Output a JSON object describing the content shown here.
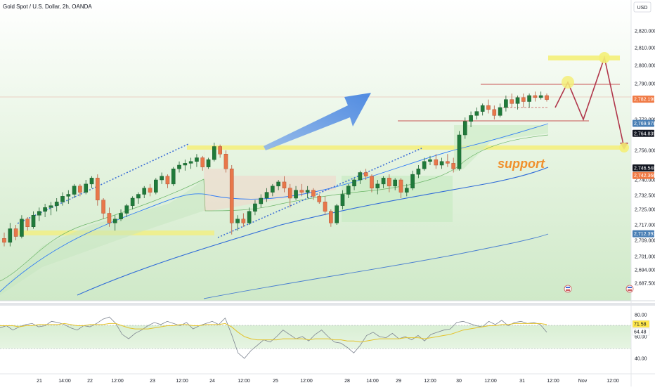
{
  "header": {
    "title": "Gold Spot / U.S. Dollar, 2h, OANDA",
    "currency_button": "USD"
  },
  "annotations": {
    "support_label": "support"
  },
  "chart_data": [
    {
      "type": "candlestick",
      "title": "Gold Spot / U.S. Dollar, 2h, OANDA",
      "currency": "USD",
      "price_axis": {
        "range": [
          2682,
          2828
        ],
        "ticks": [
          2820,
          2810,
          2800,
          2790,
          2772,
          2756,
          2740,
          2732.5,
          2725,
          2717,
          2709,
          2701,
          2694,
          2687.5
        ],
        "tick_labels": [
          "2,820.000",
          "2,810.000",
          "2,800.000",
          "2,790.000",
          "2,772.000",
          "2,756.000",
          "2,740.000",
          "2,732.500",
          "2,725.000",
          "2,717.000",
          "2,709.000",
          "2,701.000",
          "2,694.000",
          "2,687.500"
        ]
      },
      "time_axis": {
        "labels": [
          "21",
          "14:00",
          "22",
          "12:00",
          "23",
          "12:00",
          "24",
          "12:00",
          "25",
          "12:00",
          "28",
          "14:00",
          "29",
          "12:00",
          "30",
          "12:00",
          "31",
          "12:00",
          "Nov",
          "12:00"
        ]
      },
      "price_tags": [
        {
          "label": "2,782.190",
          "value": 2782.2,
          "color": "#f07a45"
        },
        {
          "label": "2,769.978",
          "value": 2770.0,
          "color": "#4a7fb5"
        },
        {
          "label": "2,764.839",
          "value": 2764.8,
          "color": "#131722"
        },
        {
          "label": "2,746.548",
          "value": 2746.5,
          "color": "#131722"
        },
        {
          "label": "2,742.366",
          "value": 2742.4,
          "color": "#f07a45"
        },
        {
          "label": "2,712.393",
          "value": 2712.4,
          "color": "#4a7fb5"
        }
      ],
      "support_level": 2757,
      "projected_target": 2810,
      "candles_ohlc": [
        [
          2710,
          2713,
          2706,
          2708
        ],
        [
          2708,
          2718,
          2706,
          2715
        ],
        [
          2715,
          2717,
          2709,
          2711
        ],
        [
          2711,
          2722,
          2710,
          2720
        ],
        [
          2720,
          2721,
          2714,
          2716
        ],
        [
          2716,
          2724,
          2715,
          2722
        ],
        [
          2722,
          2726,
          2719,
          2724
        ],
        [
          2724,
          2728,
          2721,
          2726
        ],
        [
          2726,
          2729,
          2722,
          2727
        ],
        [
          2727,
          2731,
          2724,
          2729
        ],
        [
          2729,
          2734,
          2727,
          2732
        ],
        [
          2732,
          2735,
          2728,
          2733
        ],
        [
          2733,
          2738,
          2731,
          2737
        ],
        [
          2737,
          2738,
          2732,
          2734
        ],
        [
          2734,
          2740,
          2733,
          2738
        ],
        [
          2738,
          2742,
          2736,
          2741
        ],
        [
          2741,
          2743,
          2727,
          2730
        ],
        [
          2730,
          2731,
          2720,
          2723
        ],
        [
          2723,
          2726,
          2716,
          2718
        ],
        [
          2718,
          2722,
          2714,
          2720
        ],
        [
          2720,
          2725,
          2719,
          2723
        ],
        [
          2723,
          2728,
          2721,
          2727
        ],
        [
          2727,
          2732,
          2725,
          2731
        ],
        [
          2731,
          2734,
          2728,
          2733
        ],
        [
          2733,
          2737,
          2731,
          2736
        ],
        [
          2736,
          2738,
          2732,
          2734
        ],
        [
          2734,
          2741,
          2733,
          2740
        ],
        [
          2740,
          2744,
          2738,
          2742
        ],
        [
          2742,
          2743,
          2736,
          2738
        ],
        [
          2738,
          2747,
          2737,
          2746
        ],
        [
          2746,
          2750,
          2744,
          2748
        ],
        [
          2748,
          2751,
          2745,
          2749
        ],
        [
          2749,
          2752,
          2746,
          2750
        ],
        [
          2750,
          2754,
          2747,
          2752
        ],
        [
          2752,
          2753,
          2745,
          2747
        ],
        [
          2747,
          2752,
          2746,
          2751
        ],
        [
          2751,
          2760,
          2750,
          2758
        ],
        [
          2758,
          2759,
          2752,
          2754
        ],
        [
          2754,
          2756,
          2744,
          2746
        ],
        [
          2746,
          2748,
          2712,
          2718
        ],
        [
          2718,
          2722,
          2714,
          2720
        ],
        [
          2720,
          2723,
          2716,
          2718
        ],
        [
          2718,
          2726,
          2717,
          2724
        ],
        [
          2724,
          2730,
          2722,
          2728
        ],
        [
          2728,
          2733,
          2726,
          2731
        ],
        [
          2731,
          2736,
          2729,
          2734
        ],
        [
          2734,
          2738,
          2732,
          2737
        ],
        [
          2737,
          2740,
          2735,
          2739
        ],
        [
          2739,
          2742,
          2734,
          2736
        ],
        [
          2736,
          2738,
          2726,
          2731
        ],
        [
          2731,
          2737,
          2730,
          2735
        ],
        [
          2735,
          2738,
          2732,
          2734
        ],
        [
          2734,
          2737,
          2731,
          2735
        ],
        [
          2735,
          2736,
          2730,
          2732
        ],
        [
          2732,
          2733,
          2728,
          2729
        ],
        [
          2729,
          2732,
          2722,
          2724
        ],
        [
          2724,
          2725,
          2716,
          2718
        ],
        [
          2718,
          2728,
          2717,
          2727
        ],
        [
          2727,
          2735,
          2725,
          2733
        ],
        [
          2733,
          2738,
          2731,
          2737
        ],
        [
          2737,
          2741,
          2735,
          2740
        ],
        [
          2740,
          2745,
          2738,
          2744
        ],
        [
          2744,
          2746,
          2740,
          2742
        ],
        [
          2742,
          2743,
          2734,
          2736
        ],
        [
          2736,
          2740,
          2733,
          2738
        ],
        [
          2738,
          2742,
          2736,
          2741
        ],
        [
          2741,
          2743,
          2734,
          2737
        ],
        [
          2737,
          2741,
          2735,
          2740
        ],
        [
          2740,
          2741,
          2731,
          2734
        ],
        [
          2734,
          2738,
          2732,
          2736
        ],
        [
          2736,
          2745,
          2735,
          2743
        ],
        [
          2743,
          2748,
          2741,
          2746
        ],
        [
          2746,
          2752,
          2745,
          2750
        ],
        [
          2750,
          2753,
          2748,
          2751
        ],
        [
          2751,
          2754,
          2746,
          2748
        ],
        [
          2748,
          2752,
          2746,
          2750
        ],
        [
          2750,
          2754,
          2747,
          2749
        ],
        [
          2749,
          2752,
          2744,
          2746
        ],
        [
          2746,
          2766,
          2745,
          2764
        ],
        [
          2764,
          2773,
          2762,
          2771
        ],
        [
          2771,
          2776,
          2768,
          2774
        ],
        [
          2774,
          2778,
          2772,
          2776
        ],
        [
          2776,
          2780,
          2774,
          2779
        ],
        [
          2779,
          2782,
          2775,
          2777
        ],
        [
          2777,
          2779,
          2772,
          2774
        ],
        [
          2774,
          2780,
          2773,
          2778
        ],
        [
          2778,
          2784,
          2776,
          2782
        ],
        [
          2782,
          2785,
          2778,
          2780
        ],
        [
          2780,
          2784,
          2777,
          2783
        ],
        [
          2783,
          2785,
          2778,
          2781
        ],
        [
          2781,
          2785,
          2778,
          2784
        ],
        [
          2784,
          2786,
          2781,
          2783
        ],
        [
          2783,
          2786,
          2782,
          2784
        ],
        [
          2784,
          2785,
          2781,
          2782
        ]
      ]
    },
    {
      "type": "line",
      "title": "",
      "y_axis": {
        "range": [
          35,
          85
        ],
        "ticks": [
          80,
          60,
          40
        ],
        "tick_labels": [
          "80.00",
          "60.00",
          "40.00"
        ]
      },
      "price_tags": [
        {
          "label": "71.58",
          "value": 71.58,
          "color": "#ffe74a"
        },
        {
          "label": "64.48",
          "value": 64.48,
          "color": "#ffffff"
        }
      ],
      "bands": {
        "upper": 70,
        "lower": 30
      },
      "series": [
        {
          "values": [
            68,
            70,
            66,
            69,
            71,
            72,
            69,
            70,
            74,
            73,
            71,
            68,
            66,
            70,
            69,
            72,
            76,
            78,
            72,
            62,
            58,
            63,
            66,
            70,
            73,
            71,
            74,
            72,
            70,
            73,
            67,
            70,
            72,
            74,
            71,
            77,
            62,
            45,
            40,
            47,
            52,
            57,
            55,
            60,
            66,
            62,
            58,
            60,
            56,
            62,
            66,
            60,
            55,
            54,
            50,
            45,
            52,
            61,
            64,
            60,
            59,
            63,
            58,
            60,
            57,
            61,
            56,
            62,
            64,
            66,
            67,
            73,
            74,
            72,
            70,
            69,
            74,
            71,
            75,
            70,
            73,
            74,
            72,
            73,
            71,
            64
          ]
        },
        {
          "values": [
            70,
            70,
            70,
            69,
            70,
            70,
            71,
            71,
            71,
            71,
            72,
            71,
            70,
            70,
            71,
            71,
            71,
            72,
            72,
            70,
            68,
            67,
            67,
            67,
            68,
            69,
            70,
            70,
            71,
            71,
            70,
            70,
            71,
            71,
            71,
            72,
            69,
            64,
            60,
            58,
            57,
            57,
            57,
            57,
            58,
            58,
            58,
            58,
            57,
            58,
            58,
            58,
            57,
            57,
            56,
            56,
            55,
            56,
            57,
            58,
            58,
            58,
            58,
            59,
            59,
            59,
            58,
            59,
            60,
            61,
            62,
            64,
            66,
            67,
            68,
            69,
            70,
            70,
            71,
            71,
            72,
            72,
            72,
            72,
            72,
            71
          ]
        }
      ]
    }
  ]
}
